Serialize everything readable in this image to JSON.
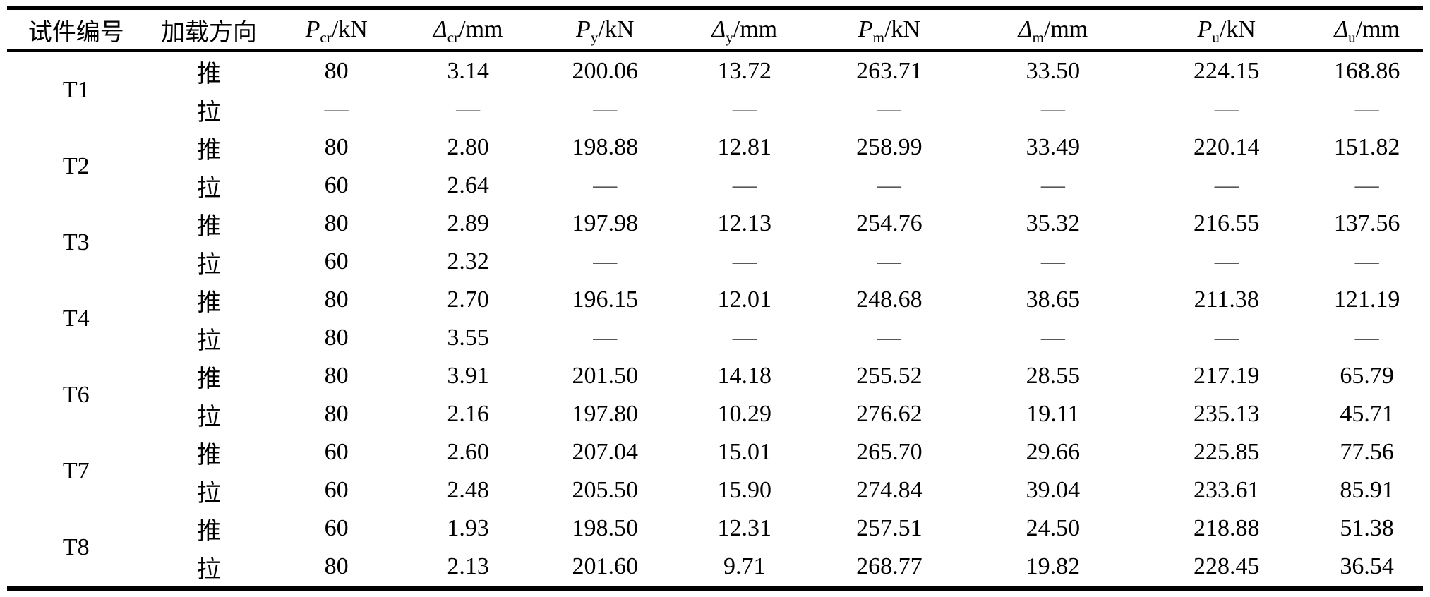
{
  "colors": {
    "rule": "#000000",
    "text": "#000000",
    "dash": "#595959"
  },
  "table": {
    "col_widths_pct": [
      9.75,
      9.01,
      9.01,
      9.58,
      9.77,
      9.92,
      10.54,
      12.59,
      11.92,
      7.91
    ],
    "columns": [
      {
        "type": "text",
        "label": "试件编号"
      },
      {
        "type": "text",
        "label": "加载方向"
      },
      {
        "type": "symbol",
        "var": "P",
        "sub": "cr",
        "unit": "kN"
      },
      {
        "type": "symbol",
        "var": "Δ",
        "sub": "cr",
        "unit": "mm"
      },
      {
        "type": "symbol",
        "var": "P",
        "sub": "y",
        "unit": "kN"
      },
      {
        "type": "symbol",
        "var": "Δ",
        "sub": "y",
        "unit": "mm"
      },
      {
        "type": "symbol",
        "var": "P",
        "sub": "m",
        "unit": "kN"
      },
      {
        "type": "symbol",
        "var": "Δ",
        "sub": "m",
        "unit": "mm"
      },
      {
        "type": "symbol",
        "var": "P",
        "sub": "u",
        "unit": "kN"
      },
      {
        "type": "symbol",
        "var": "Δ",
        "sub": "u",
        "unit": "mm"
      }
    ],
    "groups": [
      {
        "specimen": "T1",
        "rows": [
          {
            "direction": "推",
            "values": [
              "80",
              "3.14",
              "200.06",
              "13.72",
              "263.71",
              "33.50",
              "224.15",
              "168.86"
            ]
          },
          {
            "direction": "拉",
            "values": [
              "—",
              "—",
              "—",
              "—",
              "—",
              "—",
              "—",
              "—"
            ]
          }
        ]
      },
      {
        "specimen": "T2",
        "rows": [
          {
            "direction": "推",
            "values": [
              "80",
              "2.80",
              "198.88",
              "12.81",
              "258.99",
              "33.49",
              "220.14",
              "151.82"
            ]
          },
          {
            "direction": "拉",
            "values": [
              "60",
              "2.64",
              "—",
              "—",
              "—",
              "—",
              "—",
              "—"
            ]
          }
        ]
      },
      {
        "specimen": "T3",
        "rows": [
          {
            "direction": "推",
            "values": [
              "80",
              "2.89",
              "197.98",
              "12.13",
              "254.76",
              "35.32",
              "216.55",
              "137.56"
            ]
          },
          {
            "direction": "拉",
            "values": [
              "60",
              "2.32",
              "—",
              "—",
              "—",
              "—",
              "—",
              "—"
            ]
          }
        ]
      },
      {
        "specimen": "T4",
        "rows": [
          {
            "direction": "推",
            "values": [
              "80",
              "2.70",
              "196.15",
              "12.01",
              "248.68",
              "38.65",
              "211.38",
              "121.19"
            ]
          },
          {
            "direction": "拉",
            "values": [
              "80",
              "3.55",
              "—",
              "—",
              "—",
              "—",
              "—",
              "—"
            ]
          }
        ]
      },
      {
        "specimen": "T6",
        "rows": [
          {
            "direction": "推",
            "values": [
              "80",
              "3.91",
              "201.50",
              "14.18",
              "255.52",
              "28.55",
              "217.19",
              "65.79"
            ]
          },
          {
            "direction": "拉",
            "values": [
              "80",
              "2.16",
              "197.80",
              "10.29",
              "276.62",
              "19.11",
              "235.13",
              "45.71"
            ]
          }
        ]
      },
      {
        "specimen": "T7",
        "rows": [
          {
            "direction": "推",
            "values": [
              "60",
              "2.60",
              "207.04",
              "15.01",
              "265.70",
              "29.66",
              "225.85",
              "77.56"
            ]
          },
          {
            "direction": "拉",
            "values": [
              "60",
              "2.48",
              "205.50",
              "15.90",
              "274.84",
              "39.04",
              "233.61",
              "85.91"
            ]
          }
        ]
      },
      {
        "specimen": "T8",
        "rows": [
          {
            "direction": "推",
            "values": [
              "60",
              "1.93",
              "198.50",
              "12.31",
              "257.51",
              "24.50",
              "218.88",
              "51.38"
            ]
          },
          {
            "direction": "拉",
            "values": [
              "80",
              "2.13",
              "201.60",
              "9.71",
              "268.77",
              "19.82",
              "228.45",
              "36.54"
            ]
          }
        ]
      }
    ]
  }
}
